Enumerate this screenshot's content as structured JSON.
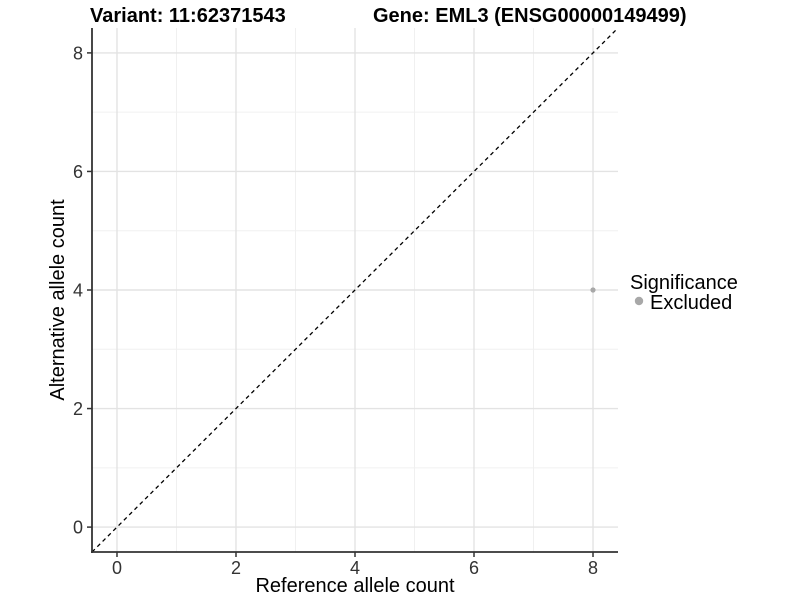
{
  "header": {
    "variant_title": "Variant: 11:62371543",
    "gene_title": "Gene: EML3 (ENSG00000149499)"
  },
  "chart_data": {
    "type": "scatter",
    "title_left": "Variant: 11:62371543",
    "title_right": "Gene: EML3 (ENSG00000149499)",
    "xlabel": "Reference allele count",
    "ylabel": "Alternative allele count",
    "xlim": [
      -0.42,
      8.42
    ],
    "ylim": [
      -0.42,
      8.42
    ],
    "x_ticks": [
      0,
      2,
      4,
      6,
      8
    ],
    "y_ticks": [
      0,
      2,
      4,
      6,
      8
    ],
    "x_minor_ticks": [
      1,
      3,
      5,
      7
    ],
    "y_minor_ticks": [
      1,
      3,
      5,
      7
    ],
    "grid": "major+minor",
    "reference_line": {
      "equation": "y = x",
      "style": "dashed",
      "color": "#000000"
    },
    "series": [
      {
        "name": "Excluded",
        "color": "#a8a8a8",
        "point_radius": 2.6,
        "points": [
          {
            "x": 8,
            "y": 4
          }
        ]
      }
    ],
    "legend": {
      "title": "Significance",
      "position": "right",
      "entries": [
        {
          "label": "Excluded",
          "color": "#a8a8a8"
        }
      ]
    },
    "colors": {
      "grid_major": "#e3e3e3",
      "grid_minor": "#f0f0f0",
      "axis_line": "#333333",
      "tick_mark": "#333333",
      "tick_text": "#333333",
      "title_text": "#000000"
    }
  }
}
